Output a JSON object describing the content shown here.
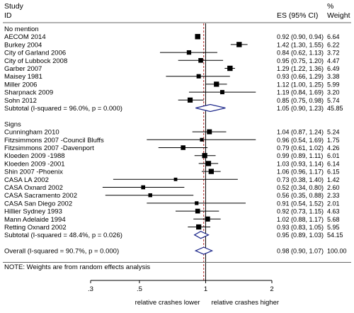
{
  "chart_data": {
    "type": "forest",
    "header": {
      "study_line1": "Study",
      "study_line2": "ID",
      "es_label": "ES (95% CI)",
      "weight_line1": "%",
      "weight_line2": "Weight"
    },
    "rows": [
      {
        "kind": "group",
        "label": "No mention"
      },
      {
        "kind": "study",
        "label": "AECOM 2014",
        "es": 0.92,
        "lo": 0.9,
        "hi": 0.94,
        "weight": 6.64,
        "ci_text": "0.92 (0.90, 0.94)",
        "weight_text": "6.64"
      },
      {
        "kind": "study",
        "label": "Burkey 2004",
        "es": 1.42,
        "lo": 1.3,
        "hi": 1.55,
        "weight": 6.22,
        "ci_text": "1.42 (1.30, 1.55)",
        "weight_text": "6.22"
      },
      {
        "kind": "study",
        "label": "City of Garland 2006",
        "es": 0.84,
        "lo": 0.62,
        "hi": 1.13,
        "weight": 3.72,
        "ci_text": "0.84 (0.62, 1.13)",
        "weight_text": "3.72"
      },
      {
        "kind": "study",
        "label": "City of Lubbock 2008",
        "es": 0.95,
        "lo": 0.75,
        "hi": 1.2,
        "weight": 4.47,
        "ci_text": "0.95 (0.75, 1.20)",
        "weight_text": "4.47"
      },
      {
        "kind": "study",
        "label": "Garber 2007",
        "es": 1.29,
        "lo": 1.22,
        "hi": 1.36,
        "weight": 6.49,
        "ci_text": "1.29 (1.22, 1.36)",
        "weight_text": "6.49"
      },
      {
        "kind": "study",
        "label": "Maisey 1981",
        "es": 0.93,
        "lo": 0.66,
        "hi": 1.29,
        "weight": 3.38,
        "ci_text": "0.93 (0.66, 1.29)",
        "weight_text": "3.38"
      },
      {
        "kind": "study",
        "label": "Miller 2006",
        "es": 1.12,
        "lo": 1.0,
        "hi": 1.25,
        "weight": 5.99,
        "ci_text": "1.12 (1.00, 1.25)",
        "weight_text": "5.99"
      },
      {
        "kind": "study",
        "label": "Sharpnack 2009",
        "es": 1.19,
        "lo": 0.84,
        "hi": 1.69,
        "weight": 3.2,
        "ci_text": "1.19 (0.84, 1.69)",
        "weight_text": "3.20"
      },
      {
        "kind": "study",
        "label": "Sohn 2012",
        "es": 0.85,
        "lo": 0.75,
        "hi": 0.98,
        "weight": 5.74,
        "ci_text": "0.85 (0.75, 0.98)",
        "weight_text": "5.74"
      },
      {
        "kind": "subtotal",
        "label": "Subtotal  (I-squared = 96.0%, p = 0.000)",
        "es": 1.05,
        "lo": 0.9,
        "hi": 1.23,
        "weight": 45.85,
        "ci_text": "1.05 (0.90, 1.23)",
        "weight_text": "45.85"
      },
      {
        "kind": "blank"
      },
      {
        "kind": "group",
        "label": "Signs"
      },
      {
        "kind": "study",
        "label": "Cunningham 2010",
        "es": 1.04,
        "lo": 0.87,
        "hi": 1.24,
        "weight": 5.24,
        "ci_text": "1.04 (0.87, 1.24)",
        "weight_text": "5.24"
      },
      {
        "kind": "study",
        "label": "Fitzsimmons 2007 -Council Bluffs",
        "es": 0.96,
        "lo": 0.54,
        "hi": 1.69,
        "weight": 1.75,
        "ci_text": "0.96 (0.54, 1.69)",
        "weight_text": "1.75"
      },
      {
        "kind": "study",
        "label": "Fitzsimmons 2007 -Davenport",
        "es": 0.79,
        "lo": 0.61,
        "hi": 1.02,
        "weight": 4.26,
        "ci_text": "0.79 (0.61, 1.02)",
        "weight_text": "4.26"
      },
      {
        "kind": "study",
        "label": "Kloeden 2009 -1988",
        "es": 0.99,
        "lo": 0.89,
        "hi": 1.11,
        "weight": 6.01,
        "ci_text": "0.99 (0.89, 1.11)",
        "weight_text": "6.01"
      },
      {
        "kind": "study",
        "label": "Kloeden 2009 -2001",
        "es": 1.03,
        "lo": 0.93,
        "hi": 1.14,
        "weight": 6.14,
        "ci_text": "1.03 (0.93, 1.14)",
        "weight_text": "6.14"
      },
      {
        "kind": "study",
        "label": "Shin 2007 -Phoenix",
        "es": 1.06,
        "lo": 0.96,
        "hi": 1.17,
        "weight": 6.15,
        "ci_text": "1.06 (0.96, 1.17)",
        "weight_text": "6.15"
      },
      {
        "kind": "study",
        "label": "CASA LA 2002",
        "es": 0.73,
        "lo": 0.38,
        "hi": 1.4,
        "weight": 1.42,
        "ci_text": "0.73 (0.38, 1.40)",
        "weight_text": "1.42"
      },
      {
        "kind": "study",
        "label": "CASA Oxnard 2002",
        "es": 0.52,
        "lo": 0.34,
        "hi": 0.8,
        "weight": 2.6,
        "ci_text": "0.52 (0.34, 0.80)",
        "weight_text": "2.60"
      },
      {
        "kind": "study",
        "label": "CASA Sacramento 2002",
        "es": 0.56,
        "lo": 0.35,
        "hi": 0.88,
        "weight": 2.33,
        "ci_text": "0.56 (0.35, 0.88)",
        "weight_text": "2.33"
      },
      {
        "kind": "study",
        "label": "CASA San Diego 2002",
        "es": 0.91,
        "lo": 0.54,
        "hi": 1.52,
        "weight": 2.01,
        "ci_text": "0.91 (0.54, 1.52)",
        "weight_text": "2.01"
      },
      {
        "kind": "study",
        "label": "Hillier Sydney 1993",
        "es": 0.92,
        "lo": 0.73,
        "hi": 1.15,
        "weight": 4.63,
        "ci_text": "0.92 (0.73, 1.15)",
        "weight_text": "4.63"
      },
      {
        "kind": "study",
        "label": "Mann Adelaide 1994",
        "es": 1.02,
        "lo": 0.88,
        "hi": 1.17,
        "weight": 5.68,
        "ci_text": "1.02 (0.88, 1.17)",
        "weight_text": "5.68"
      },
      {
        "kind": "study",
        "label": "Retting Oxnard 2002",
        "es": 0.93,
        "lo": 0.83,
        "hi": 1.05,
        "weight": 5.95,
        "ci_text": "0.93 (0.83, 1.05)",
        "weight_text": "5.95"
      },
      {
        "kind": "subtotal",
        "label": "Subtotal  (I-squared = 48.4%, p = 0.026)",
        "es": 0.95,
        "lo": 0.89,
        "hi": 1.03,
        "weight": 54.15,
        "ci_text": "0.95 (0.89, 1.03)",
        "weight_text": "54.15"
      },
      {
        "kind": "blank"
      },
      {
        "kind": "overall",
        "label": "Overall  (I-squared = 90.7%, p = 0.000)",
        "es": 0.98,
        "lo": 0.9,
        "hi": 1.07,
        "weight": 100.0,
        "ci_text": "0.98 (0.90, 1.07)",
        "weight_text": "100.00"
      },
      {
        "kind": "blank"
      },
      {
        "kind": "note",
        "label": "NOTE: Weights are from random effects analysis"
      }
    ],
    "x_scale": "log",
    "xlim": [
      0.3,
      2.0
    ],
    "x_ticks": [
      {
        "value": 0.3,
        "label": ".3"
      },
      {
        "value": 0.5,
        "label": ".5"
      },
      {
        "value": 1,
        "label": "1"
      },
      {
        "value": 2,
        "label": "2"
      }
    ],
    "null_line": 1,
    "overall_line": 0.98,
    "x_captions": {
      "left": "relative crashes lower",
      "right": "relative crashes higher"
    },
    "colors": {
      "ink": "#000000",
      "diamond": "#1f2a8c",
      "overall_line": "#b22222",
      "rule": "#666666"
    }
  }
}
